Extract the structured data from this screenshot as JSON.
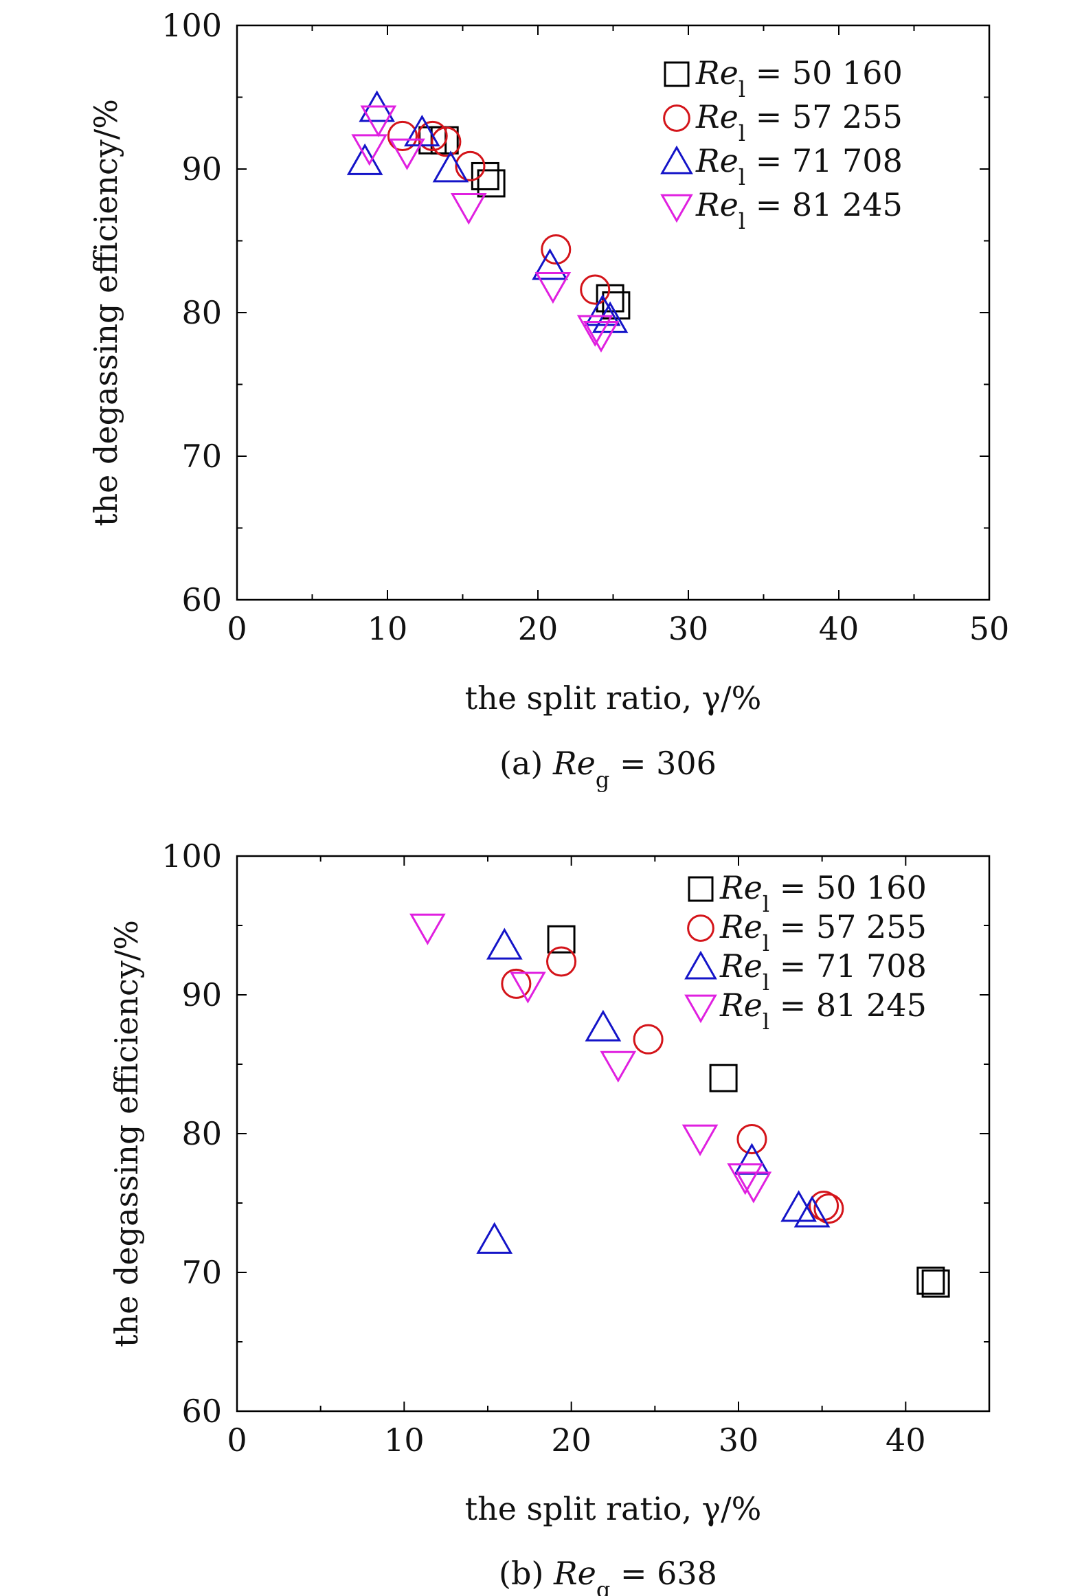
{
  "chart_data": [
    {
      "id": "a",
      "type": "scatter",
      "caption": {
        "prefix": "(a)",
        "var": "Re",
        "sub": "g",
        "rest": " = 306"
      },
      "xlabel": "the split ratio, γ/%",
      "ylabel": "the degassing efficiency/%",
      "xlim": [
        0,
        50
      ],
      "ylim": [
        60,
        100
      ],
      "xticks": [
        0,
        10,
        20,
        30,
        40,
        50
      ],
      "yticks": [
        60,
        70,
        80,
        90,
        100
      ],
      "legend_position": "top-right",
      "series": [
        {
          "name": "Re_l = 50 160",
          "label_var": "Re",
          "label_sub": "l",
          "label_rest": " = 50 160",
          "marker": "square",
          "color": "#000000",
          "x": [
            13.0,
            13.8,
            16.5,
            16.9,
            24.8,
            25.2
          ],
          "y": [
            92.0,
            92.0,
            89.5,
            89.0,
            81.0,
            80.5
          ]
        },
        {
          "name": "Re_l = 57 255",
          "label_var": "Re",
          "label_sub": "l",
          "label_rest": " = 57 255",
          "marker": "circle",
          "color": "#d4141a",
          "x": [
            11.0,
            13.0,
            13.9,
            15.5,
            21.2,
            23.8
          ],
          "y": [
            92.3,
            92.3,
            91.9,
            90.2,
            84.4,
            81.6
          ]
        },
        {
          "name": "Re_l = 71 708",
          "label_var": "Re",
          "label_sub": "l",
          "label_rest": " = 71 708",
          "marker": "triangle-up",
          "color": "#1414c8",
          "x": [
            8.5,
            9.3,
            12.3,
            14.2,
            20.8,
            24.3,
            24.8
          ],
          "y": [
            90.5,
            94.2,
            92.5,
            90.0,
            83.2,
            80.0,
            79.5
          ]
        },
        {
          "name": "Re_l = 81 245",
          "label_var": "Re",
          "label_sub": "l",
          "label_rest": " = 81 245",
          "marker": "triangle-down",
          "color": "#e020e0",
          "x": [
            8.8,
            9.4,
            11.3,
            15.4,
            21.0,
            23.8,
            24.2
          ],
          "y": [
            91.5,
            93.5,
            91.2,
            87.4,
            81.9,
            78.9,
            78.5
          ]
        }
      ]
    },
    {
      "id": "b",
      "type": "scatter",
      "caption": {
        "prefix": "(b)",
        "var": "Re",
        "sub": "g",
        "rest": " = 638"
      },
      "xlabel": "the split ratio, γ/%",
      "ylabel": "the degassing efficiency/%",
      "xlim": [
        0,
        45
      ],
      "ylim": [
        60,
        100
      ],
      "xticks": [
        0,
        10,
        20,
        30,
        40
      ],
      "yticks": [
        60,
        70,
        80,
        90,
        100
      ],
      "legend_position": "top-right",
      "series": [
        {
          "name": "Re_l = 50 160",
          "label_var": "Re",
          "label_sub": "l",
          "label_rest": " = 50 160",
          "marker": "square",
          "color": "#000000",
          "x": [
            19.4,
            29.1,
            41.5,
            41.8
          ],
          "y": [
            94.0,
            84.0,
            69.4,
            69.2
          ]
        },
        {
          "name": "Re_l = 57 255",
          "label_var": "Re",
          "label_sub": "l",
          "label_rest": " = 57 255",
          "marker": "circle",
          "color": "#d4141a",
          "x": [
            16.7,
            19.4,
            24.6,
            30.8,
            35.1,
            35.4
          ],
          "y": [
            90.8,
            92.4,
            86.8,
            79.6,
            74.8,
            74.6
          ]
        },
        {
          "name": "Re_l = 71 708",
          "label_var": "Re",
          "label_sub": "l",
          "label_rest": " = 71 708",
          "marker": "triangle-up",
          "color": "#1414c8",
          "x": [
            15.4,
            16.0,
            21.9,
            30.8,
            33.6,
            34.4
          ],
          "y": [
            72.3,
            93.5,
            87.6,
            78.0,
            74.6,
            74.2
          ]
        },
        {
          "name": "Re_l = 81 245",
          "label_var": "Re",
          "label_sub": "l",
          "label_rest": " = 81 245",
          "marker": "triangle-down",
          "color": "#e020e0",
          "x": [
            11.4,
            17.4,
            22.8,
            27.7,
            30.4,
            30.9
          ],
          "y": [
            94.9,
            90.7,
            85.0,
            79.7,
            76.9,
            76.3
          ]
        }
      ]
    }
  ]
}
